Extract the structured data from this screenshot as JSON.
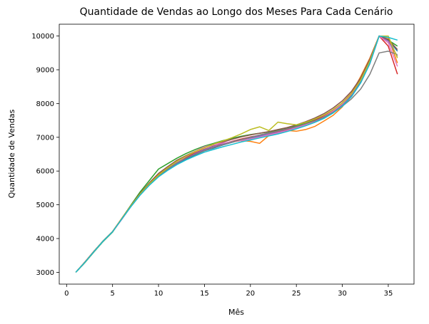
{
  "chart_data": {
    "type": "line",
    "title": "Quantidade de Vendas ao Longo dos Meses Para Cada Cenário",
    "xlabel": "Mês",
    "ylabel": "Quantidade de Vendas",
    "xlim": [
      -0.8,
      37.8
    ],
    "ylim": [
      2650,
      10350
    ],
    "xticks": [
      0,
      5,
      10,
      15,
      20,
      25,
      30,
      35
    ],
    "yticks": [
      3000,
      4000,
      5000,
      6000,
      7000,
      8000,
      9000,
      10000
    ],
    "grid": false,
    "legend": "none",
    "x": [
      1,
      2,
      3,
      4,
      5,
      6,
      7,
      8,
      9,
      10,
      11,
      12,
      13,
      14,
      15,
      16,
      17,
      18,
      19,
      20,
      21,
      22,
      23,
      24,
      25,
      26,
      27,
      28,
      29,
      30,
      31,
      32,
      33,
      34,
      35,
      36
    ],
    "series": [
      {
        "color": "#1f77b4",
        "values": [
          3000,
          3300,
          3620,
          3930,
          4200,
          4580,
          4950,
          5300,
          5590,
          5850,
          6040,
          6220,
          6350,
          6480,
          6600,
          6680,
          6770,
          6850,
          6920,
          6980,
          7030,
          7070,
          7120,
          7180,
          7260,
          7350,
          7460,
          7590,
          7760,
          7960,
          8250,
          8650,
          9200,
          10000,
          9900,
          9550
        ]
      },
      {
        "color": "#ff7f0e",
        "values": [
          3000,
          3310,
          3630,
          3940,
          4210,
          4600,
          4980,
          5330,
          5630,
          5890,
          6090,
          6260,
          6380,
          6500,
          6610,
          6700,
          6780,
          6860,
          6900,
          6880,
          6820,
          7050,
          7150,
          7200,
          7180,
          7230,
          7320,
          7480,
          7650,
          7900,
          8300,
          8800,
          9350,
          10000,
          9950,
          9200
        ]
      },
      {
        "color": "#2ca02c",
        "values": [
          3000,
          3290,
          3610,
          3920,
          4190,
          4590,
          4990,
          5380,
          5720,
          6060,
          6220,
          6380,
          6520,
          6640,
          6740,
          6820,
          6900,
          6970,
          7030,
          7080,
          7120,
          7160,
          7210,
          7270,
          7340,
          7420,
          7510,
          7620,
          7780,
          7980,
          8270,
          8680,
          9250,
          10000,
          9880,
          9700
        ]
      },
      {
        "color": "#d62728",
        "values": [
          3000,
          3310,
          3630,
          3930,
          4200,
          4580,
          4960,
          5310,
          5610,
          5870,
          6080,
          6270,
          6410,
          6540,
          6650,
          6740,
          6810,
          6880,
          6950,
          7010,
          7060,
          7110,
          7160,
          7220,
          7300,
          7390,
          7500,
          7630,
          7800,
          8020,
          8310,
          8720,
          9300,
          10000,
          9700,
          8870
        ]
      },
      {
        "color": "#9467bd",
        "values": [
          3000,
          3300,
          3620,
          3930,
          4200,
          4570,
          4950,
          5290,
          5580,
          5840,
          6050,
          6230,
          6380,
          6520,
          6640,
          6730,
          6800,
          6870,
          6930,
          6990,
          7050,
          7100,
          7150,
          7210,
          7290,
          7370,
          7470,
          7590,
          7750,
          7940,
          8220,
          8620,
          9180,
          10000,
          9850,
          9400
        ]
      },
      {
        "color": "#8c564b",
        "values": [
          3000,
          3300,
          3620,
          3940,
          4210,
          4590,
          4980,
          5340,
          5650,
          5930,
          6130,
          6320,
          6460,
          6590,
          6700,
          6780,
          6860,
          6940,
          7010,
          7070,
          7120,
          7170,
          7230,
          7290,
          7370,
          7460,
          7570,
          7700,
          7870,
          8080,
          8360,
          8760,
          9320,
          10000,
          9900,
          9600
        ]
      },
      {
        "color": "#e377c2",
        "values": [
          3000,
          3300,
          3620,
          3930,
          4200,
          4580,
          4960,
          5300,
          5600,
          5860,
          6070,
          6260,
          6430,
          6590,
          6720,
          6790,
          6830,
          6870,
          6900,
          6950,
          7010,
          7070,
          7130,
          7200,
          7280,
          7370,
          7480,
          7610,
          7780,
          7990,
          8280,
          8690,
          9260,
          10000,
          9800,
          9100
        ]
      },
      {
        "color": "#7f7f7f",
        "values": [
          3000,
          3300,
          3620,
          3930,
          4200,
          4580,
          4950,
          5290,
          5590,
          5850,
          6060,
          6240,
          6380,
          6500,
          6610,
          6700,
          6780,
          6860,
          6930,
          7000,
          7070,
          7130,
          7190,
          7250,
          7320,
          7400,
          7490,
          7600,
          7740,
          7920,
          8140,
          8430,
          8870,
          9500,
          9550,
          9450
        ]
      },
      {
        "color": "#bcbd22",
        "values": [
          3000,
          3300,
          3620,
          3930,
          4200,
          4590,
          4970,
          5320,
          5620,
          5880,
          6100,
          6290,
          6440,
          6580,
          6690,
          6800,
          6890,
          6990,
          7100,
          7230,
          7310,
          7200,
          7450,
          7400,
          7370,
          7440,
          7540,
          7660,
          7820,
          8020,
          8300,
          8700,
          9260,
          10000,
          10000,
          9350
        ]
      },
      {
        "color": "#17becf",
        "values": [
          3000,
          3300,
          3620,
          3930,
          4200,
          4580,
          4950,
          5290,
          5580,
          5830,
          6020,
          6190,
          6330,
          6450,
          6560,
          6640,
          6720,
          6790,
          6860,
          6920,
          6980,
          7040,
          7100,
          7170,
          7250,
          7340,
          7440,
          7560,
          7720,
          7920,
          8200,
          8610,
          9190,
          10000,
          9960,
          9880
        ]
      }
    ]
  }
}
